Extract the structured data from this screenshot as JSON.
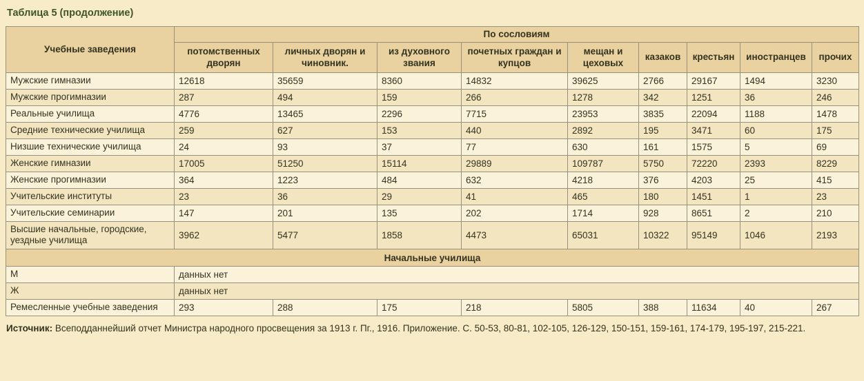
{
  "page": {
    "title": "Таблица 5 (продолжение)",
    "source_label": "Источник:",
    "source_text": " Всеподданнейший отчет Министра народного просвещения за 1913 г. Пг., 1916. Приложение. С. 50-53, 80-81, 102-105, 126-129, 150-151, 159-161, 174-179, 195-197, 215-221."
  },
  "colors": {
    "page_background": "#f7ebc8",
    "header_background": "#e9d2a0",
    "row_light": "#fbf3d9",
    "row_dark": "#f3e5bf",
    "border": "#95917e",
    "title_text": "#3f5429"
  },
  "table": {
    "institutions_header": "Учебные заведения",
    "group_header": "По сословиям",
    "columns": [
      "потомственных дворян",
      "личных дворян и чиновник.",
      "из духовного звания",
      "почетных граждан и купцов",
      "мещан и цеховых",
      "казаков",
      "крестьян",
      "иностранцев",
      "прочих"
    ],
    "rows": [
      {
        "type": "data",
        "label": "Мужские гимназии",
        "values": [
          "12618",
          "35659",
          "8360",
          "14832",
          "39625",
          "2766",
          "29167",
          "1494",
          "3230"
        ]
      },
      {
        "type": "data",
        "label": "Мужские прогимназии",
        "values": [
          "287",
          "494",
          "159",
          "266",
          "1278",
          "342",
          "1251",
          "36",
          "246"
        ]
      },
      {
        "type": "data",
        "label": "Реальные училища",
        "values": [
          "4776",
          "13465",
          "2296",
          "7715",
          "23953",
          "3835",
          "22094",
          "1188",
          "1478"
        ]
      },
      {
        "type": "data",
        "label": "Средние технические училища",
        "values": [
          "259",
          "627",
          "153",
          "440",
          "2892",
          "195",
          "3471",
          "60",
          "175"
        ]
      },
      {
        "type": "data",
        "label": "Низшие технические училища",
        "values": [
          "24",
          "93",
          "37",
          "77",
          "630",
          "161",
          "1575",
          "5",
          "69"
        ]
      },
      {
        "type": "data",
        "label": "Женские гимназии",
        "values": [
          "17005",
          "51250",
          "15114",
          "29889",
          "109787",
          "5750",
          "72220",
          "2393",
          "8229"
        ]
      },
      {
        "type": "data",
        "label": "Женские прогимназии",
        "values": [
          "364",
          "1223",
          "484",
          "632",
          "4218",
          "376",
          "4203",
          "25",
          "415"
        ]
      },
      {
        "type": "data",
        "label": "Учительские институты",
        "values": [
          "23",
          "36",
          "29",
          "41",
          "465",
          "180",
          "1451",
          "1",
          "23"
        ]
      },
      {
        "type": "data",
        "label": "Учительские семинарии",
        "values": [
          "147",
          "201",
          "135",
          "202",
          "1714",
          "928",
          "8651",
          "2",
          "210"
        ]
      },
      {
        "type": "data",
        "label": "Высшие начальные, городские, уездные училища",
        "values": [
          "3962",
          "5477",
          "1858",
          "4473",
          "65031",
          "10322",
          "95149",
          "1046",
          "2193"
        ]
      },
      {
        "type": "section",
        "label": "Начальные училища"
      },
      {
        "type": "span",
        "label": "М",
        "value": "данных нет"
      },
      {
        "type": "span",
        "label": "Ж",
        "value": "данных нет"
      },
      {
        "type": "data",
        "label": "Ремесленные учебные заведения",
        "values": [
          "293",
          "288",
          "175",
          "218",
          "5805",
          "388",
          "11634",
          "40",
          "267"
        ]
      }
    ]
  }
}
